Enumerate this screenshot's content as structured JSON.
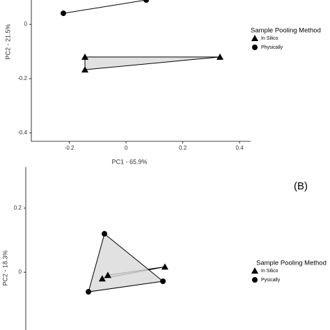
{
  "chart_data": [
    {
      "type": "scatter",
      "x_label": "PC1 - 65.9%",
      "y_label": "PC2 - 21.5%",
      "legend_title": "Sample Pooling Method",
      "xlim": [
        -0.334,
        0.439
      ],
      "ylim": [
        -0.431,
        0.09
      ],
      "xticks": [
        -0.2,
        0.0,
        0.2,
        0.4
      ],
      "yticks": [
        0.0,
        -0.2,
        -0.4
      ],
      "series": [
        {
          "name": "In Silico",
          "marker": "triangle",
          "color": "#000000",
          "x": [
            -0.145,
            -0.145,
            0.331
          ],
          "values": [
            -0.12,
            -0.167,
            -0.12
          ]
        },
        {
          "name": "Physically",
          "marker": "circle",
          "color": "#000000",
          "x": [
            -0.221,
            0.071
          ],
          "values": [
            0.041,
            0.09
          ]
        }
      ]
    },
    {
      "type": "scatter",
      "y_label": "PC2 - 18.3%",
      "legend_title": "Sample Pooling Method",
      "annotation": "(B)",
      "xlim": [
        -0.35,
        0.45
      ],
      "ylim": [
        -0.18,
        0.328
      ],
      "yticks": [
        0.2,
        0.0
      ],
      "series": [
        {
          "name": "In Silico",
          "marker": "triangle",
          "color": "#000000",
          "x": [
            -0.078,
            -0.058,
            0.145
          ],
          "values": [
            -0.02,
            -0.009,
            0.017
          ]
        },
        {
          "name": "Pysically",
          "marker": "circle",
          "color": "#000000",
          "x": [
            -0.07,
            -0.127,
            0.138
          ],
          "values": [
            0.12,
            -0.061,
            -0.028
          ]
        }
      ]
    }
  ]
}
